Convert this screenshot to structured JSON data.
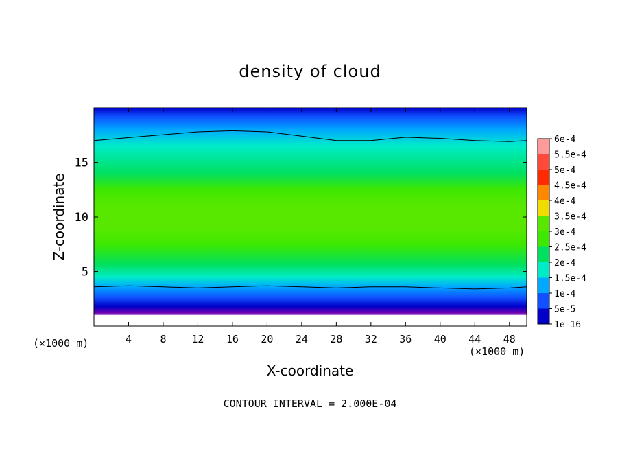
{
  "chart_data": {
    "type": "heatmap",
    "title": "density of cloud",
    "xlabel": "X-coordinate",
    "ylabel": "Z-coordinate",
    "x_units_left": "(×1000 m)",
    "x_units_right": "(×1000 m)",
    "xlim": [
      0,
      50
    ],
    "ylim": [
      0,
      20
    ],
    "x_ticks": [
      4,
      8,
      12,
      16,
      20,
      24,
      28,
      32,
      36,
      40,
      44,
      48
    ],
    "y_ticks": [
      5,
      10,
      15
    ],
    "footer": "CONTOUR INTERVAL = 2.000E-04",
    "colorbar": {
      "labels": [
        "6e-4",
        "5.5e-4",
        "5e-4",
        "4.5e-4",
        "4e-4",
        "3.5e-4",
        "3e-4",
        "2.5e-4",
        "2e-4",
        "1.5e-4",
        "1e-4",
        "5e-5",
        "1e-16"
      ],
      "colors": [
        "#ff9a9a",
        "#ff4a3a",
        "#ff2a00",
        "#ff8800",
        "#f0dc00",
        "#58e800",
        "#3ee800",
        "#00e060",
        "#00ecc8",
        "#00a8ff",
        "#1050ff",
        "#0000c8",
        "#7000b0"
      ]
    },
    "vertical_profile": [
      {
        "z": 0.8,
        "value": 0
      },
      {
        "z": 1.2,
        "value": 1e-16
      },
      {
        "z": 1.8,
        "value": 5e-05
      },
      {
        "z": 2.6,
        "value": 0.0001
      },
      {
        "z": 3.6,
        "value": 0.00015
      },
      {
        "z": 4.5,
        "value": 0.0002
      },
      {
        "z": 5.6,
        "value": 0.00025
      },
      {
        "z": 7.5,
        "value": 0.0003
      },
      {
        "z": 9.0,
        "value": 0.00035
      },
      {
        "z": 11.0,
        "value": 0.00035
      },
      {
        "z": 12.5,
        "value": 0.0003
      },
      {
        "z": 14.0,
        "value": 0.00025
      },
      {
        "z": 16.5,
        "value": 0.0002
      },
      {
        "z": 18.0,
        "value": 0.00015
      },
      {
        "z": 19.2,
        "value": 0.0001
      },
      {
        "z": 20.0,
        "value": 5e-05
      }
    ],
    "contour_lines": [
      {
        "level": 0.0002,
        "x": [
          0,
          6,
          12,
          16,
          20,
          24,
          28,
          32,
          36,
          40,
          44,
          48,
          50
        ],
        "z": [
          17.0,
          17.4,
          17.8,
          17.9,
          17.8,
          17.4,
          17.0,
          17.0,
          17.3,
          17.2,
          17.0,
          16.9,
          17.0
        ]
      },
      {
        "level": 0.0002,
        "x": [
          0,
          4,
          8,
          12,
          16,
          20,
          24,
          28,
          32,
          36,
          40,
          44,
          48,
          50
        ],
        "z": [
          3.6,
          3.7,
          3.6,
          3.5,
          3.6,
          3.7,
          3.6,
          3.5,
          3.6,
          3.6,
          3.5,
          3.4,
          3.5,
          3.6
        ]
      }
    ]
  }
}
